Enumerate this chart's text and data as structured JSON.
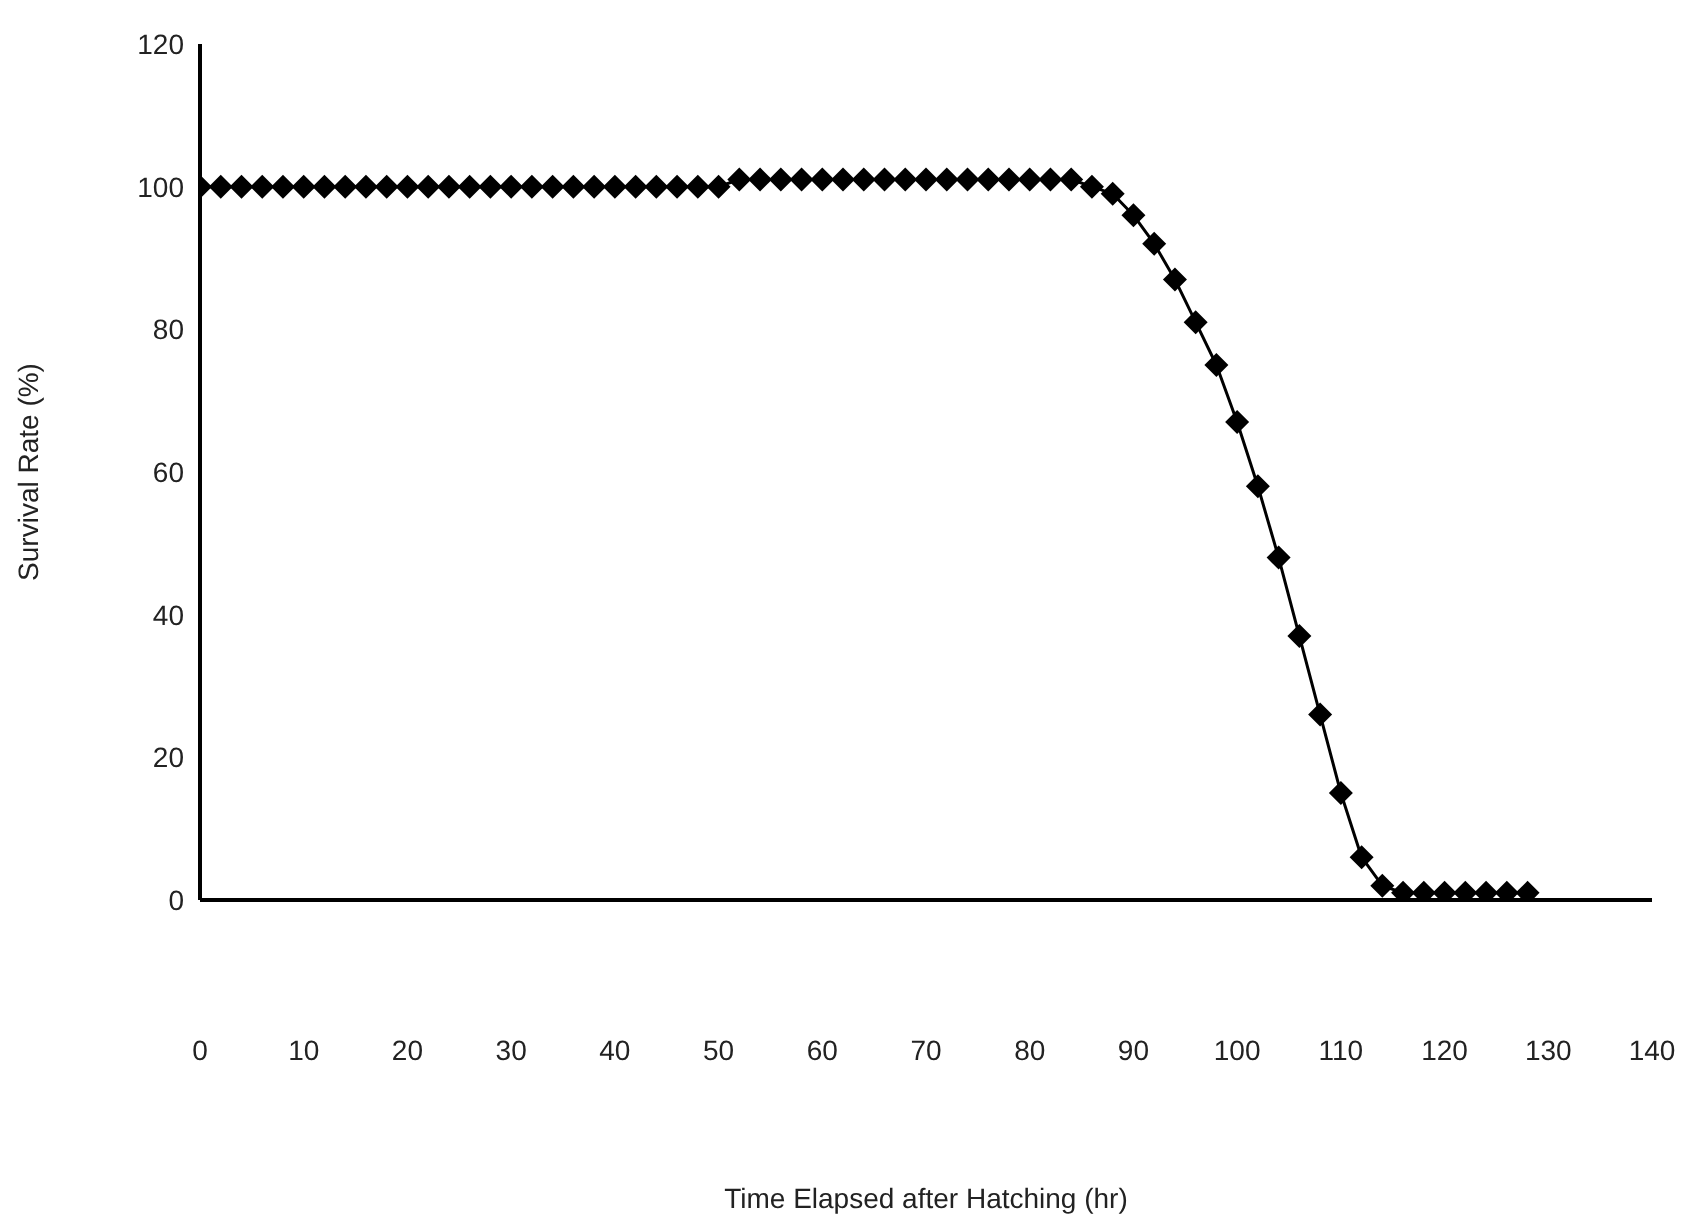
{
  "chart_data": {
    "type": "line",
    "xlabel": "Time Elapsed after Hatching (hr)",
    "ylabel": "Survival Rate (%)",
    "x": [
      0,
      2,
      4,
      6,
      8,
      10,
      12,
      14,
      16,
      18,
      20,
      22,
      24,
      26,
      28,
      30,
      32,
      34,
      36,
      38,
      40,
      42,
      44,
      46,
      48,
      50,
      52,
      54,
      56,
      58,
      60,
      62,
      64,
      66,
      68,
      70,
      72,
      74,
      76,
      78,
      80,
      82,
      84,
      86,
      88,
      90,
      92,
      94,
      96,
      98,
      100,
      102,
      104,
      106,
      108,
      110,
      112,
      114,
      116,
      118,
      120,
      122,
      124,
      126,
      128
    ],
    "series": [
      {
        "color": "#000000",
        "values": [
          100,
          100,
          100,
          100,
          100,
          100,
          100,
          100,
          100,
          100,
          100,
          100,
          100,
          100,
          100,
          100,
          100,
          100,
          100,
          100,
          100,
          100,
          100,
          100,
          100,
          100,
          101,
          101,
          101,
          101,
          101,
          101,
          101,
          101,
          101,
          101,
          101,
          101,
          101,
          101,
          101,
          101,
          101,
          100,
          99,
          96,
          92,
          87,
          81,
          75,
          67,
          58,
          48,
          37,
          26,
          15,
          6,
          2,
          1,
          1,
          1,
          1,
          1,
          1,
          1
        ]
      }
    ],
    "xlim": [
      0,
      140
    ],
    "xticks": [
      0,
      10,
      20,
      30,
      40,
      50,
      60,
      70,
      80,
      90,
      100,
      110,
      120,
      130,
      140
    ],
    "ylim": [
      0,
      120
    ],
    "yticks": [
      0,
      20,
      40,
      60,
      80,
      100,
      120
    ],
    "grid": false,
    "legend": false,
    "marker": "diamond",
    "line_style": "solid"
  }
}
